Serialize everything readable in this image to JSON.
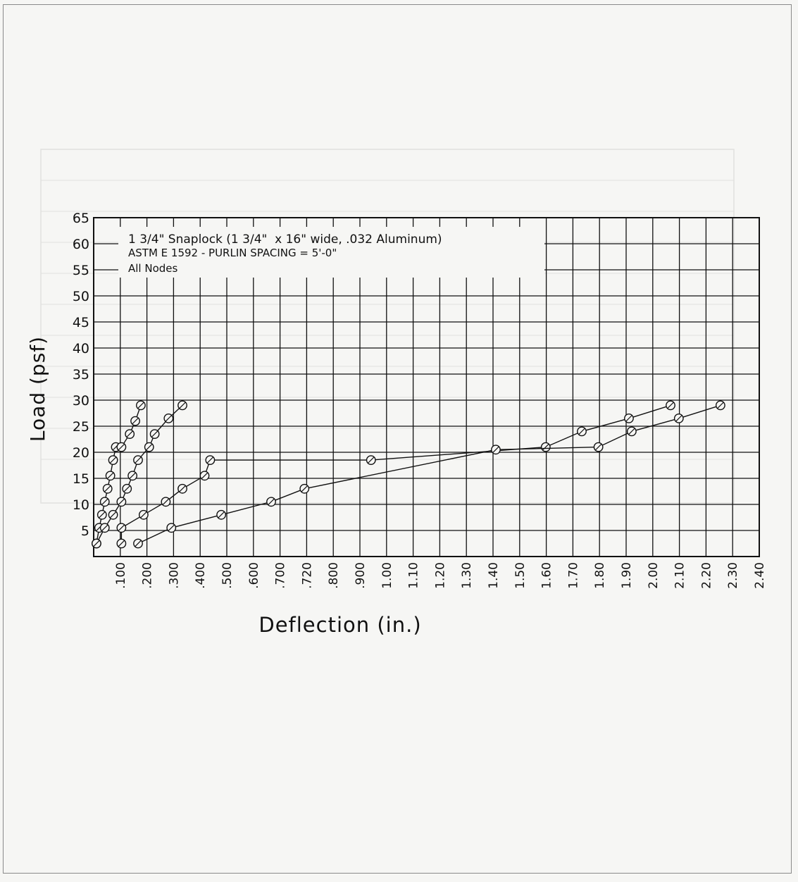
{
  "chart_data": {
    "type": "line",
    "title_lines": [
      "1 3/4\" Snaplock (1 3/4\"  x 16\" wide, .032 Aluminum)",
      "ASTM E 1592 - PURLIN SPACING = 5'-0\"",
      "All Nodes"
    ],
    "xlabel": "Deflection (in.)",
    "ylabel": "Load (psf)",
    "x_tick_labels": [
      ".100",
      ".200",
      ".300",
      ".400",
      ".500",
      ".600",
      ".700",
      ".720",
      ".800",
      ".900",
      "1.00",
      "1.10",
      "1.20",
      "1.30",
      "1.40",
      "1.50",
      "1.60",
      "1.70",
      "1.80",
      "1.90",
      "2.00",
      "2.10",
      "2.20",
      "2.30",
      "2.40"
    ],
    "y_ticks": [
      5,
      10,
      15,
      20,
      25,
      30,
      35,
      40,
      45,
      50,
      55,
      60,
      65
    ],
    "ylim": [
      0,
      65
    ],
    "xlim": [
      0,
      2.4
    ],
    "grid": true,
    "series": [
      {
        "x": [
          0.01,
          0.02,
          0.03,
          0.04,
          0.05,
          0.06,
          0.07,
          0.08
        ],
        "y": [
          2.5,
          5.5,
          8,
          10.5,
          13,
          15.5,
          18.5,
          21
        ]
      },
      {
        "x": [
          0.1,
          0.13,
          0.15,
          0.17
        ],
        "y": [
          21,
          23.5,
          26,
          29
        ]
      },
      {
        "x": [
          0.01,
          0.04,
          0.07,
          0.1,
          0.12,
          0.14,
          0.16,
          0.2,
          0.22,
          0.27,
          0.32
        ],
        "y": [
          2.5,
          5.5,
          8,
          10.5,
          13,
          15.5,
          18.5,
          21,
          23.5,
          26.5,
          29
        ]
      },
      {
        "x": [
          0.1,
          0.1,
          0.18,
          0.26,
          0.32,
          0.4,
          0.42,
          1.0,
          1.63,
          1.76,
          1.93,
          2.08
        ],
        "y": [
          2.5,
          5.5,
          8,
          10.5,
          13,
          15.5,
          18.5,
          18.5,
          21,
          24,
          26.5,
          29
        ]
      },
      {
        "x": [
          0.16,
          0.28,
          0.46,
          0.64,
          0.76,
          1.45,
          1.82,
          1.94,
          2.11,
          2.26
        ],
        "y": [
          2.5,
          5.5,
          8,
          10.5,
          13,
          20.5,
          21,
          24,
          26.5,
          29
        ]
      }
    ]
  }
}
